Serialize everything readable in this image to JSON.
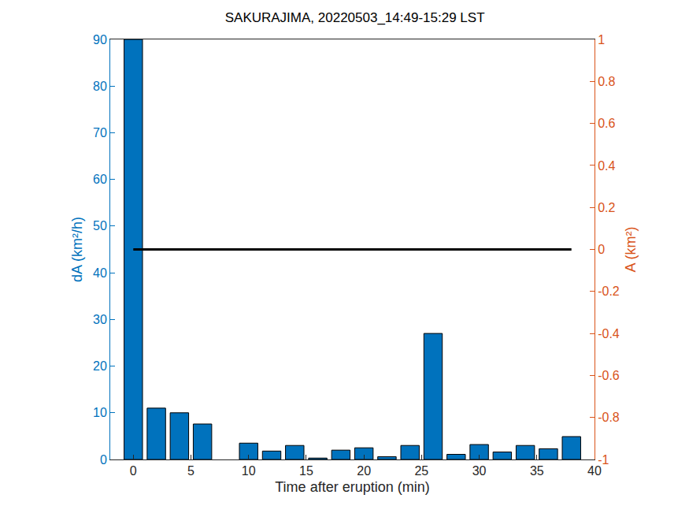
{
  "chart_data": {
    "type": "bar",
    "title": "SAKURAJIMA, 20220503_14:49-15:29 LST",
    "x_label": "Time after eruption (min)",
    "y_label": "dA (km²/h)",
    "y2_label": "A (km²)",
    "x": [
      0,
      2,
      4,
      6,
      8,
      10,
      12,
      14,
      16,
      18,
      20,
      22,
      24,
      26,
      28,
      30,
      32,
      34,
      36,
      38
    ],
    "series": [
      {
        "type": "bar",
        "color": "#0072BD",
        "axis": "y",
        "values": [
          90,
          11,
          10,
          7.6,
          null,
          3.5,
          1.8,
          3.0,
          0.3,
          2.0,
          2.5,
          0.6,
          3.0,
          27,
          1.1,
          3.2,
          1.6,
          3.0,
          2.3,
          4.9
        ]
      },
      {
        "type": "line",
        "color": "#000000",
        "axis": "y2",
        "line_style": "solid",
        "values": [
          0,
          0,
          0,
          0,
          0,
          0,
          0,
          0,
          0,
          0,
          0,
          0,
          0,
          0,
          0,
          0,
          0,
          0,
          0,
          0
        ]
      }
    ],
    "xlim": [
      -2,
      40
    ],
    "xticks": [
      0,
      5,
      10,
      15,
      20,
      25,
      30,
      35,
      40
    ],
    "ylim": [
      0,
      90
    ],
    "yticks": [
      0,
      10,
      20,
      30,
      40,
      50,
      60,
      70,
      80,
      90
    ],
    "y2lim": [
      -1,
      1
    ],
    "y2ticks": [
      -1,
      -0.8,
      -0.6,
      -0.4,
      -0.2,
      0,
      0.2,
      0.4,
      0.6,
      0.8,
      1
    ],
    "y_color": "#0072BD",
    "y2_color": "#D95319",
    "grid": false
  }
}
